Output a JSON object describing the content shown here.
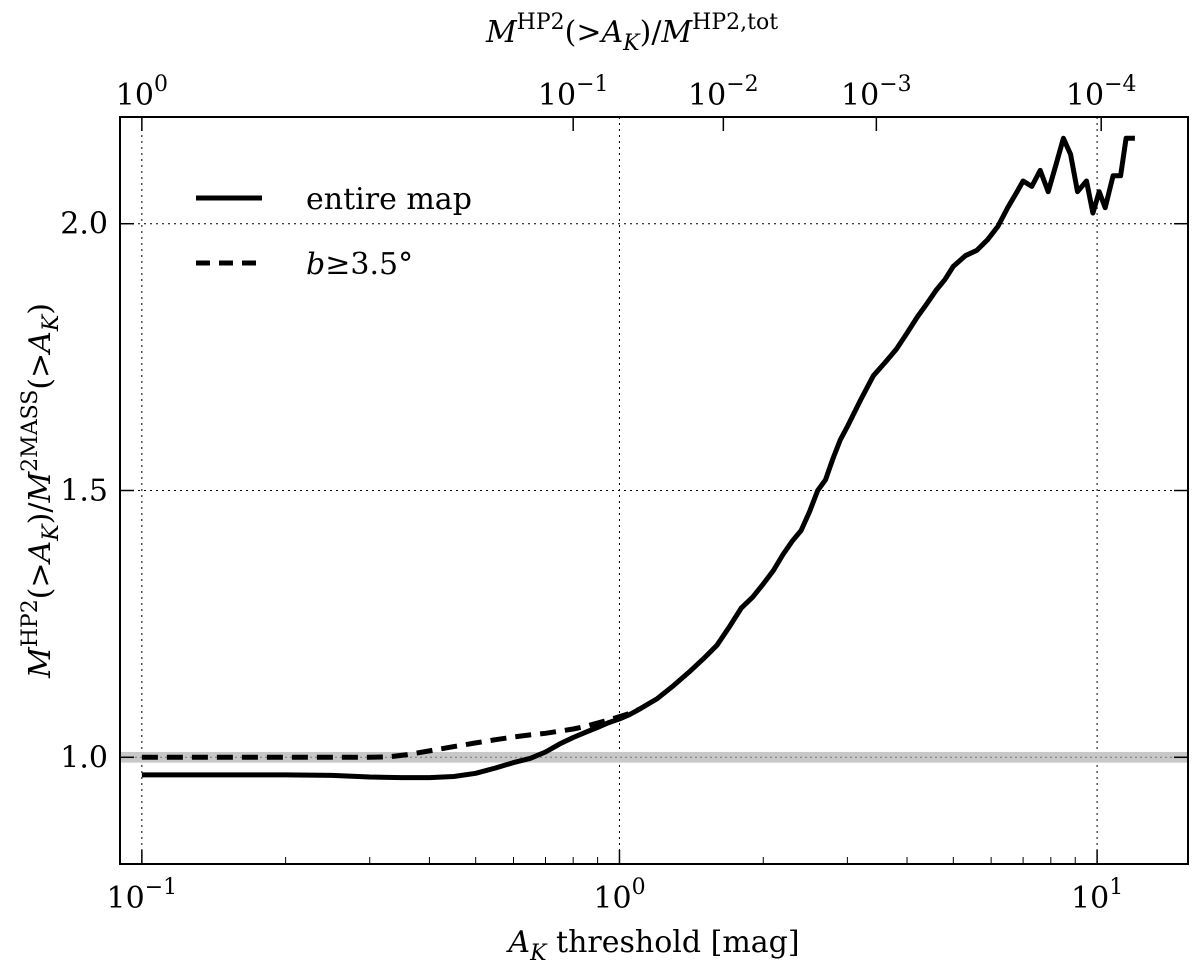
{
  "chart_data": {
    "type": "line",
    "xlabel": "A_K threshold [mag]",
    "ylabel": "M^HP2(>A_K)/M^2MASS(>A_K)",
    "top_xlabel": "M^HP2(>A_K)/M^HP2,tot",
    "x_scale": "log",
    "xlim": [
      0.09,
      15.5
    ],
    "ylim": [
      0.8,
      2.2
    ],
    "grid": true,
    "legend_position": "top-left",
    "x_ticks": [
      {
        "value": 0.1,
        "label": "10^-1"
      },
      {
        "value": 1,
        "label": "10^0"
      },
      {
        "value": 10,
        "label": "10^1"
      }
    ],
    "y_ticks": [
      {
        "value": 1.0,
        "label": "1.0"
      },
      {
        "value": 1.5,
        "label": "1.5"
      },
      {
        "value": 2.0,
        "label": "2.0"
      }
    ],
    "top_ticks": [
      {
        "at_x": 0.1,
        "label": "10^0"
      },
      {
        "at_x": 0.8,
        "label": "10^-1"
      },
      {
        "at_x": 1.65,
        "label": "10^-2"
      },
      {
        "at_x": 3.45,
        "label": "10^-3"
      },
      {
        "at_x": 10.2,
        "label": "10^-4"
      }
    ],
    "reference_line": {
      "y": 1.0,
      "band": [
        0.99,
        1.01
      ]
    },
    "series": [
      {
        "name": "entire map",
        "style": "solid",
        "points": [
          [
            0.1,
            0.967
          ],
          [
            0.15,
            0.967
          ],
          [
            0.2,
            0.967
          ],
          [
            0.25,
            0.966
          ],
          [
            0.3,
            0.963
          ],
          [
            0.35,
            0.962
          ],
          [
            0.4,
            0.962
          ],
          [
            0.45,
            0.964
          ],
          [
            0.5,
            0.97
          ],
          [
            0.55,
            0.98
          ],
          [
            0.6,
            0.99
          ],
          [
            0.65,
            0.998
          ],
          [
            0.7,
            1.01
          ],
          [
            0.75,
            1.025
          ],
          [
            0.8,
            1.037
          ],
          [
            0.85,
            1.047
          ],
          [
            0.9,
            1.056
          ],
          [
            0.95,
            1.065
          ],
          [
            1.0,
            1.072
          ],
          [
            1.05,
            1.08
          ],
          [
            1.1,
            1.09
          ],
          [
            1.2,
            1.11
          ],
          [
            1.3,
            1.135
          ],
          [
            1.4,
            1.16
          ],
          [
            1.5,
            1.185
          ],
          [
            1.6,
            1.21
          ],
          [
            1.7,
            1.245
          ],
          [
            1.8,
            1.28
          ],
          [
            1.9,
            1.3
          ],
          [
            2.0,
            1.325
          ],
          [
            2.1,
            1.35
          ],
          [
            2.2,
            1.38
          ],
          [
            2.3,
            1.405
          ],
          [
            2.4,
            1.425
          ],
          [
            2.5,
            1.46
          ],
          [
            2.6,
            1.5
          ],
          [
            2.7,
            1.52
          ],
          [
            2.8,
            1.56
          ],
          [
            2.9,
            1.595
          ],
          [
            3.0,
            1.62
          ],
          [
            3.2,
            1.67
          ],
          [
            3.4,
            1.715
          ],
          [
            3.6,
            1.74
          ],
          [
            3.8,
            1.765
          ],
          [
            4.0,
            1.795
          ],
          [
            4.2,
            1.825
          ],
          [
            4.4,
            1.85
          ],
          [
            4.6,
            1.875
          ],
          [
            4.8,
            1.895
          ],
          [
            5.0,
            1.92
          ],
          [
            5.3,
            1.94
          ],
          [
            5.6,
            1.95
          ],
          [
            5.9,
            1.97
          ],
          [
            6.2,
            1.995
          ],
          [
            6.5,
            2.03
          ],
          [
            6.8,
            2.06
          ],
          [
            7.0,
            2.08
          ],
          [
            7.3,
            2.07
          ],
          [
            7.6,
            2.1
          ],
          [
            7.9,
            2.06
          ],
          [
            8.2,
            2.11
          ],
          [
            8.5,
            2.16
          ],
          [
            8.8,
            2.13
          ],
          [
            9.1,
            2.06
          ],
          [
            9.5,
            2.08
          ],
          [
            9.8,
            2.02
          ],
          [
            10.1,
            2.06
          ],
          [
            10.4,
            2.03
          ],
          [
            10.8,
            2.09
          ],
          [
            11.2,
            2.09
          ],
          [
            11.5,
            2.16
          ],
          [
            12.0,
            2.16
          ]
        ]
      },
      {
        "name": "b≥3.5°",
        "style": "dashed",
        "points": [
          [
            0.1,
            1.0
          ],
          [
            0.15,
            1.0
          ],
          [
            0.2,
            1.0
          ],
          [
            0.25,
            1.0
          ],
          [
            0.3,
            1.0
          ],
          [
            0.33,
            1.001
          ],
          [
            0.36,
            1.005
          ],
          [
            0.4,
            1.012
          ],
          [
            0.45,
            1.02
          ],
          [
            0.5,
            1.027
          ],
          [
            0.55,
            1.033
          ],
          [
            0.6,
            1.038
          ],
          [
            0.65,
            1.042
          ],
          [
            0.7,
            1.045
          ],
          [
            0.75,
            1.049
          ],
          [
            0.8,
            1.053
          ],
          [
            0.85,
            1.058
          ],
          [
            0.9,
            1.064
          ],
          [
            0.95,
            1.07
          ],
          [
            1.0,
            1.076
          ],
          [
            1.05,
            1.082
          ],
          [
            1.1,
            1.09
          ]
        ]
      }
    ]
  }
}
